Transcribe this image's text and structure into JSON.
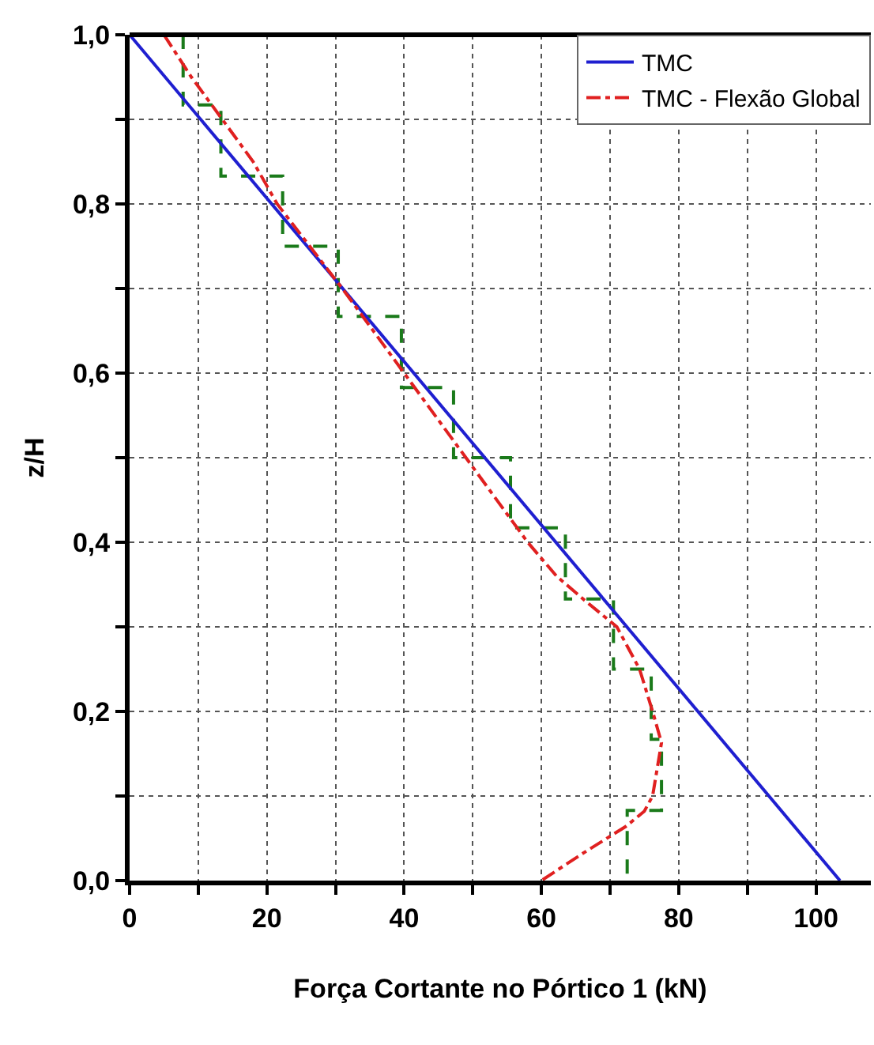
{
  "chart_data": {
    "type": "line",
    "xlabel": "Força Cortante no Pórtico 1 (kN)",
    "ylabel": "z/H",
    "xlim": [
      0,
      108
    ],
    "ylim": [
      0,
      1
    ],
    "xticks": [
      0,
      {
        "value": 10,
        "label": null
      },
      20,
      {
        "value": 30,
        "label": null
      },
      40,
      {
        "value": 50,
        "label": null
      },
      60,
      {
        "value": 70,
        "label": null
      },
      80,
      {
        "value": 90,
        "label": null
      },
      100
    ],
    "yticks": [
      {
        "value": 0,
        "label": "0,0"
      },
      {
        "value": 0.1,
        "label": null
      },
      {
        "value": 0.2,
        "label": "0,2"
      },
      {
        "value": 0.3,
        "label": null
      },
      {
        "value": 0.4,
        "label": "0,4"
      },
      {
        "value": 0.5,
        "label": null
      },
      {
        "value": 0.6,
        "label": "0,6"
      },
      {
        "value": 0.7,
        "label": null
      },
      {
        "value": 0.8,
        "label": "0,8"
      },
      {
        "value": 0.9,
        "label": null
      },
      {
        "value": 1,
        "label": "1,0"
      }
    ],
    "grid": true,
    "legend": "top right",
    "marker": "none",
    "series": [
      {
        "color": "#1a7a1a",
        "line_style": "dashed",
        "x": [
          7.8,
          7.8,
          13.3,
          13.3,
          22.3,
          22.3,
          30.4,
          30.4,
          39.6,
          39.6,
          47.2,
          47.2,
          55.5,
          55.5,
          63.5,
          63.5,
          70.5,
          70.5,
          76,
          76,
          77.5,
          77.5,
          72.5,
          72.5
        ],
        "values": [
          1,
          0.917,
          0.917,
          0.833,
          0.833,
          0.75,
          0.75,
          0.667,
          0.667,
          0.583,
          0.583,
          0.5,
          0.5,
          0.417,
          0.417,
          0.333,
          0.333,
          0.25,
          0.25,
          0.167,
          0.167,
          0.083,
          0.083,
          0
        ]
      },
      {
        "name": "TMC",
        "color": "#1f1fd0",
        "line_style": "solid",
        "x": [
          0,
          103.5
        ],
        "values": [
          1,
          0
        ]
      },
      {
        "name": "TMC - Flexão Global",
        "color": "#e02020",
        "line_style": "dashdot",
        "x": [
          5,
          9,
          13.5,
          18,
          21.5,
          31,
          40,
          49,
          58,
          62.2,
          66.5,
          71,
          74.3,
          76.2,
          77.5,
          76.2,
          75,
          72.3,
          66,
          60
        ],
        "values": [
          1,
          0.95,
          0.9,
          0.85,
          0.8,
          0.7,
          0.6,
          0.5,
          0.4,
          0.36,
          0.33,
          0.3,
          0.25,
          0.2,
          0.163,
          0.1,
          0.082,
          0.064,
          0.032,
          0
        ]
      }
    ]
  }
}
